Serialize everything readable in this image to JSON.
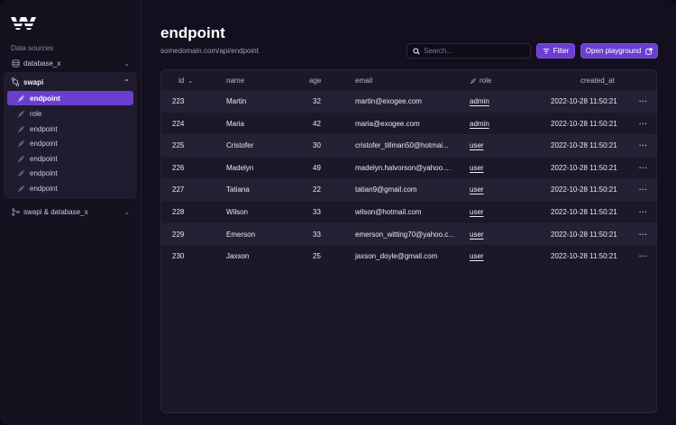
{
  "sidebar": {
    "section_label": "Data sources",
    "sources": [
      {
        "label": "database_x",
        "icon": "database-icon"
      }
    ],
    "group": {
      "label": "swapi",
      "icon": "branch-icon",
      "items": [
        {
          "label": "endpoint",
          "active": true
        },
        {
          "label": "role",
          "active": false
        },
        {
          "label": "endpoint",
          "active": false
        },
        {
          "label": "endpoint",
          "active": false
        },
        {
          "label": "endpoint",
          "active": false
        },
        {
          "label": "endpoint",
          "active": false
        },
        {
          "label": "endpoint",
          "active": false
        }
      ]
    },
    "combined": {
      "label": "swapi & database_x",
      "icon": "merge-icon"
    }
  },
  "header": {
    "title": "endpoint",
    "url": "somedomain.com/api/endpoint",
    "search_placeholder": "Search...",
    "filter_label": "Filter",
    "playground_label": "Open playground"
  },
  "table": {
    "columns": {
      "id": "id",
      "name": "name",
      "age": "age",
      "email": "email",
      "role": "role",
      "created_at": "created_at"
    },
    "rows": [
      {
        "id": "223",
        "name": "Martin",
        "age": "32",
        "email": "martin@exogee.com",
        "role": "admin",
        "created_at": "2022-10-28 11:50:21"
      },
      {
        "id": "224",
        "name": "Maria",
        "age": "42",
        "email": "maria@exogee.com",
        "role": "admin",
        "created_at": "2022-10-28 11:50:21"
      },
      {
        "id": "225",
        "name": "Cristofer",
        "age": "30",
        "email": "cristofer_tillman50@hotmai...",
        "role": "user",
        "created_at": "2022-10-28 11:50:21"
      },
      {
        "id": "226",
        "name": "Madelyn",
        "age": "49",
        "email": "madelyn.halvorson@yahoo....",
        "role": "user",
        "created_at": "2022-10-28 11:50:21"
      },
      {
        "id": "227",
        "name": "Tatiana",
        "age": "22",
        "email": "tatian9@gmail.com",
        "role": "user",
        "created_at": "2022-10-28 11:50:21"
      },
      {
        "id": "228",
        "name": "Wilson",
        "age": "33",
        "email": "wilson@hotmail.com",
        "role": "user",
        "created_at": "2022-10-28 11:50:21"
      },
      {
        "id": "229",
        "name": "Emerson",
        "age": "33",
        "email": "emerson_witting70@yahoo.c...",
        "role": "user",
        "created_at": "2022-10-28 11:50:21"
      },
      {
        "id": "230",
        "name": "Jaxson",
        "age": "25",
        "email": "jaxson_doyle@gmail.com",
        "role": "user",
        "created_at": "2022-10-28 11:50:21"
      }
    ],
    "row_action": "···"
  },
  "colors": {
    "accent": "#6a3fd0",
    "background": "#130f1f",
    "table_bg": "#1d1829"
  }
}
